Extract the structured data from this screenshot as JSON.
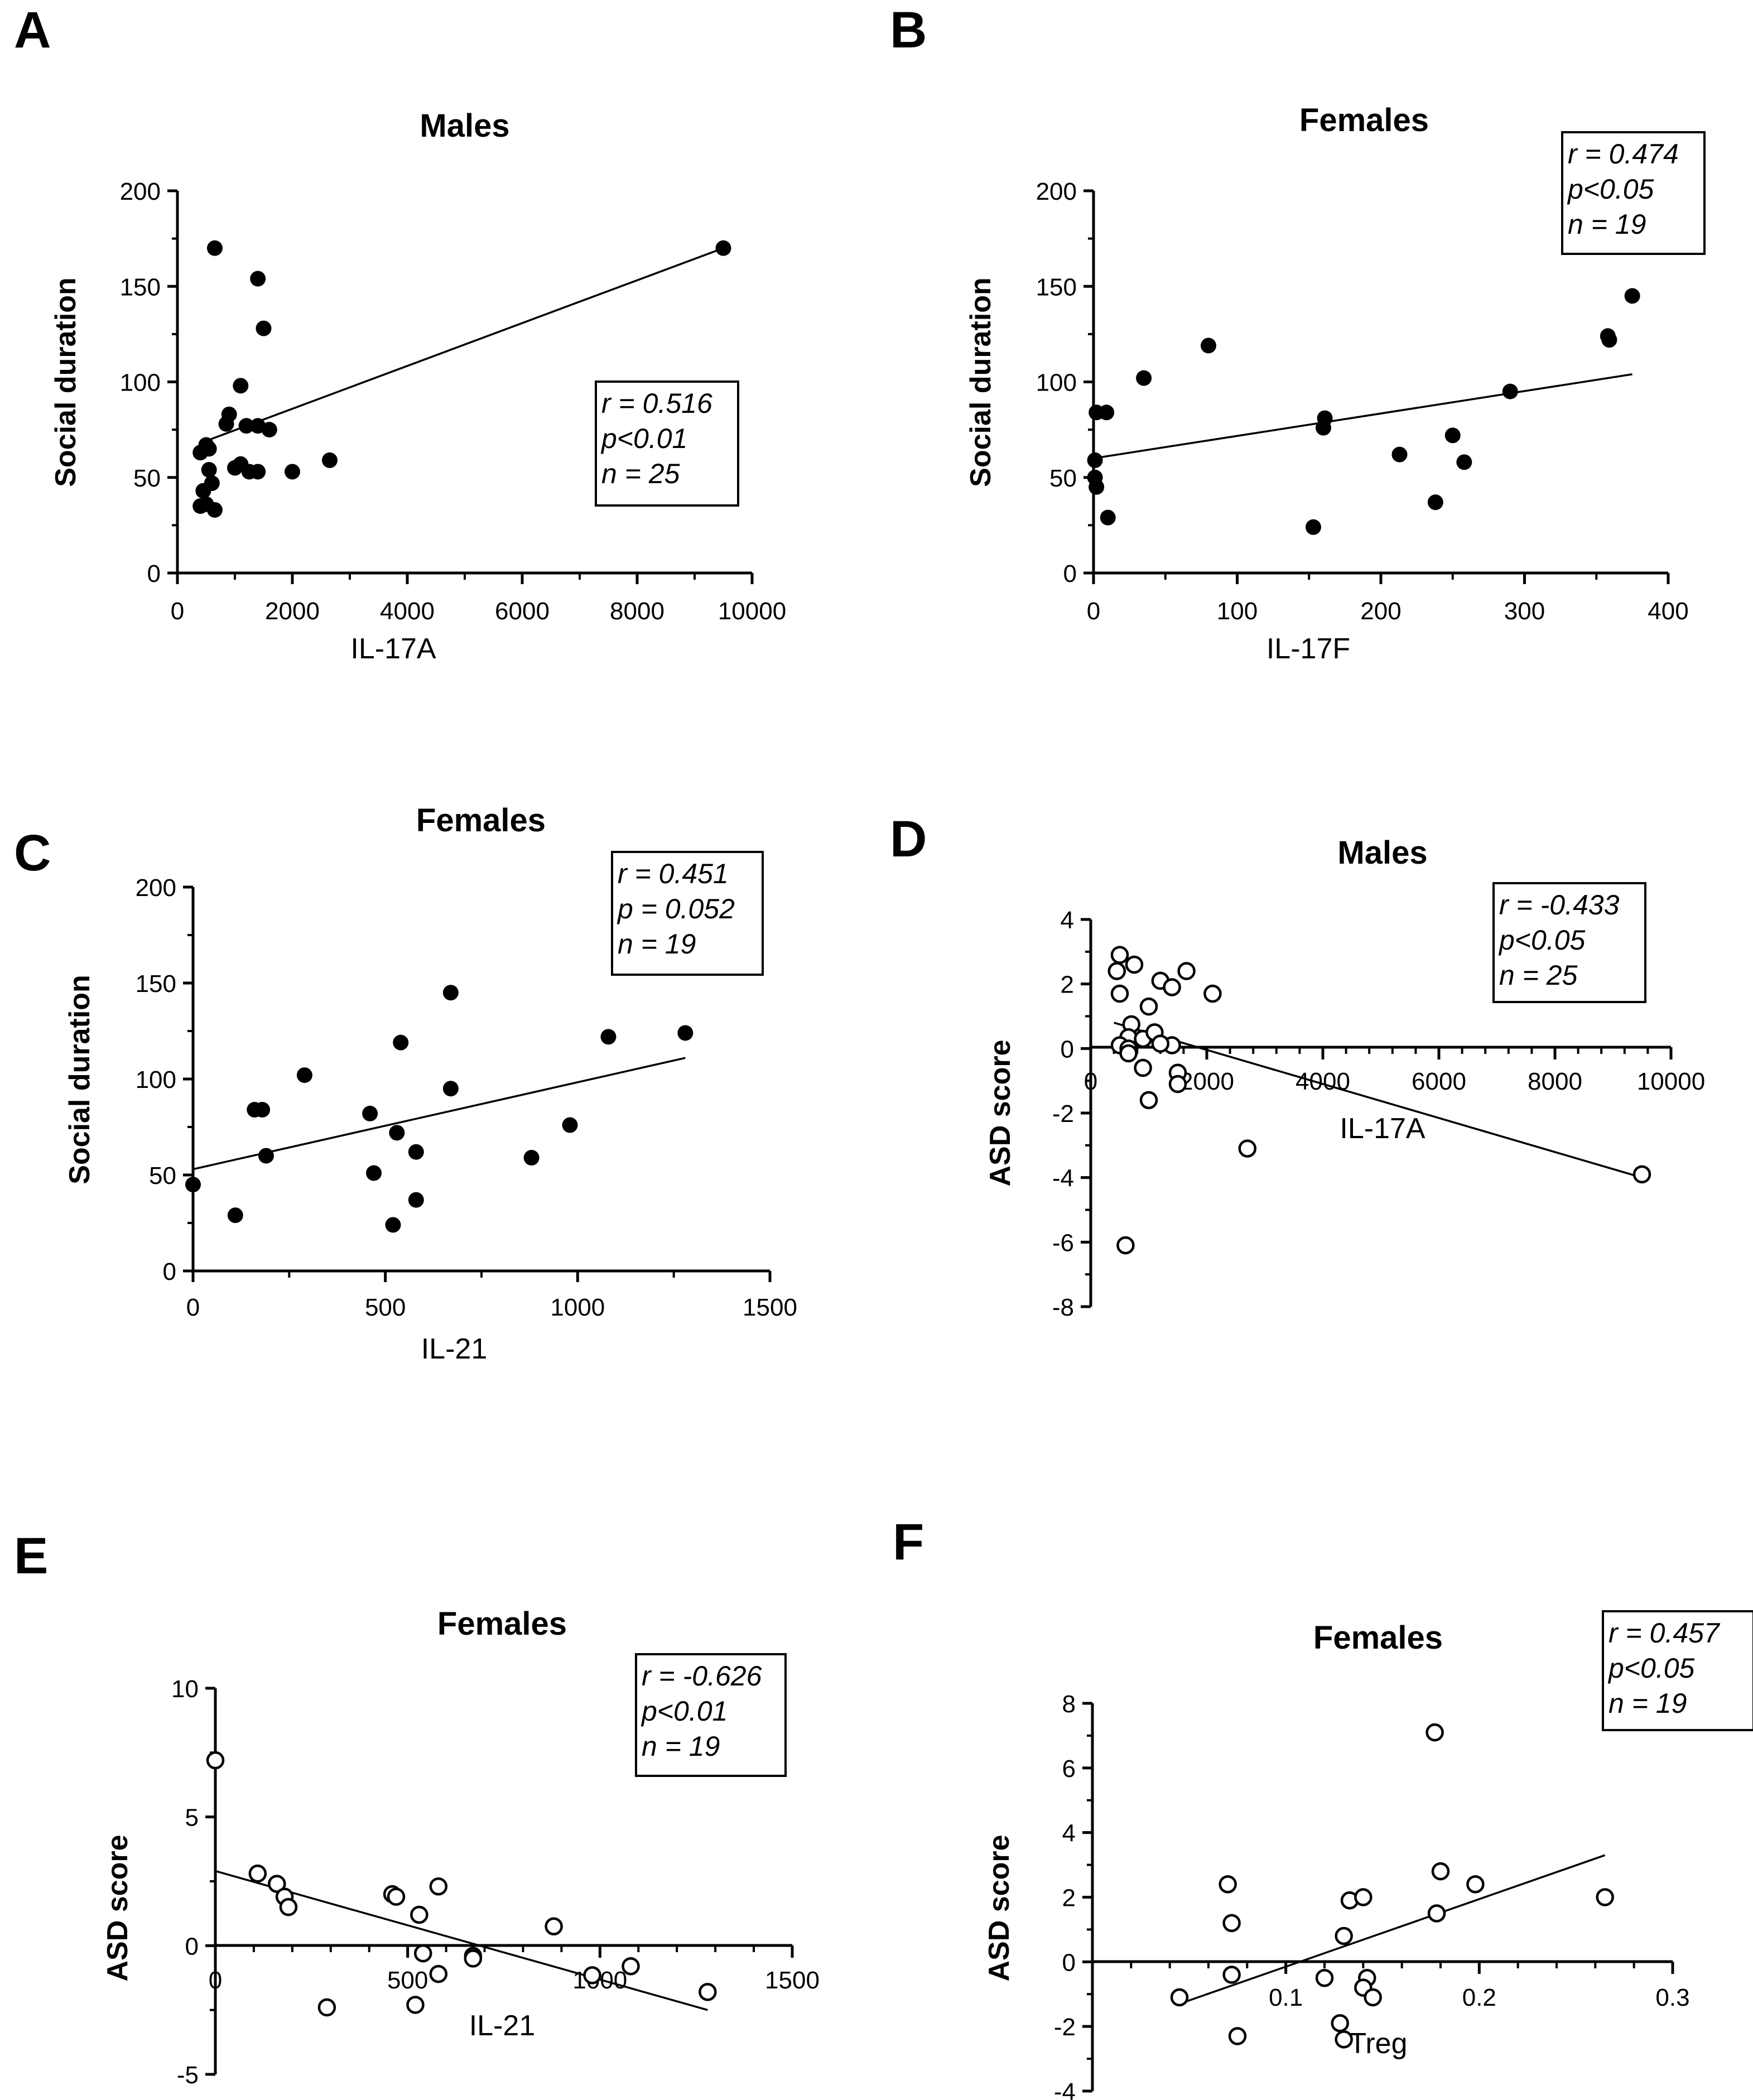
{
  "figure": {
    "panels": [
      {
        "letter": "A",
        "marker": "filled",
        "chart_data": {
          "type": "scatter",
          "title": "Males",
          "xlabel": "IL-17A",
          "ylabel": "Social duration",
          "xlim": [
            0,
            10000
          ],
          "ylim": [
            0,
            200
          ],
          "xticks": [
            0,
            2000,
            4000,
            6000,
            8000,
            10000
          ],
          "yticks": [
            0,
            50,
            100,
            150,
            200
          ],
          "x": [
            650,
            1400,
            1500,
            1100,
            900,
            850,
            1200,
            1400,
            1600,
            500,
            550,
            400,
            1000,
            1100,
            1250,
            1400,
            2000,
            2650,
            550,
            600,
            450,
            500,
            650,
            400,
            9500
          ],
          "y": [
            170,
            154,
            128,
            98,
            83,
            78,
            77,
            77,
            75,
            67,
            65,
            63,
            55,
            57,
            53,
            53,
            53,
            59,
            54,
            47,
            43,
            36,
            33,
            35,
            170
          ],
          "fit": {
            "x": [
              400,
              9500
            ],
            "y": [
              68,
              170
            ]
          },
          "annotations": [
            "r = 0.516",
            "p<0.01",
            "n = 25"
          ]
        }
      },
      {
        "letter": "B",
        "marker": "filled",
        "chart_data": {
          "type": "scatter",
          "title": "Females",
          "xlabel": "IL-17F",
          "ylabel": "Social duration",
          "xlim": [
            0,
            400
          ],
          "ylim": [
            0,
            200
          ],
          "xticks": [
            0,
            100,
            200,
            300,
            400
          ],
          "yticks": [
            0,
            50,
            100,
            150,
            200
          ],
          "x": [
            2,
            9,
            1,
            1,
            2,
            10,
            35,
            80,
            153,
            160,
            161,
            213,
            238,
            250,
            258,
            290,
            358,
            359,
            375
          ],
          "y": [
            84,
            84,
            59,
            50,
            45,
            29,
            102,
            119,
            24,
            76,
            81,
            62,
            37,
            72,
            58,
            95,
            124,
            122,
            145
          ],
          "fit": {
            "x": [
              0,
              375
            ],
            "y": [
              60,
              104
            ]
          },
          "annotations": [
            "r = 0.474",
            "p<0.05",
            "n = 19"
          ]
        }
      },
      {
        "letter": "C",
        "marker": "filled",
        "chart_data": {
          "type": "scatter",
          "title": "Females",
          "xlabel": "IL-21",
          "ylabel": "Social duration",
          "xlim": [
            0,
            1500
          ],
          "ylim": [
            0,
            200
          ],
          "xticks": [
            0,
            500,
            1000,
            1500
          ],
          "yticks": [
            0,
            50,
            100,
            150,
            200
          ],
          "x": [
            0,
            110,
            160,
            180,
            190,
            290,
            460,
            470,
            520,
            530,
            540,
            580,
            580,
            670,
            670,
            880,
            980,
            1080,
            1280
          ],
          "y": [
            45,
            29,
            84,
            84,
            60,
            102,
            82,
            51,
            24,
            72,
            119,
            62,
            37,
            145,
            95,
            59,
            76,
            122,
            124
          ],
          "fit": {
            "x": [
              0,
              1280
            ],
            "y": [
              53,
              111
            ]
          },
          "annotations": [
            "r = 0.451",
            "p = 0.052",
            "n = 19"
          ]
        }
      },
      {
        "letter": "D",
        "marker": "open",
        "chart_data": {
          "type": "scatter",
          "title": "Males",
          "xlabel": "IL-17A",
          "ylabel": "ASD score",
          "xlim": [
            0,
            10000
          ],
          "ylim": [
            -8,
            4
          ],
          "xticks": [
            0,
            2000,
            4000,
            6000,
            8000,
            10000
          ],
          "yticks": [
            -8,
            -6,
            -4,
            -2,
            0,
            2,
            4
          ],
          "x": [
            500,
            450,
            750,
            500,
            1200,
            1650,
            1400,
            2100,
            700,
            1000,
            650,
            900,
            500,
            650,
            1400,
            1100,
            1200,
            900,
            1500,
            1500,
            1000,
            2700,
            600,
            9500,
            650
          ],
          "y": [
            2.9,
            2.4,
            2.6,
            1.7,
            2.1,
            2.4,
            1.9,
            1.7,
            0.75,
            1.3,
            0.35,
            0.3,
            0.1,
            0.0,
            0.1,
            0.5,
            0.15,
            -0.6,
            -0.75,
            -1.1,
            -1.6,
            -3.1,
            -6.1,
            -3.9,
            -0.15
          ],
          "fit": {
            "x": [
              400,
              9500
            ],
            "y": [
              0.8,
              -4.0
            ]
          },
          "annotations": [
            "r = -0.433",
            "p<0.05",
            "n = 25"
          ]
        }
      },
      {
        "letter": "E",
        "marker": "open",
        "chart_data": {
          "type": "scatter",
          "title": "Females",
          "xlabel": "IL-21",
          "ylabel": "ASD score",
          "xlim": [
            0,
            1500
          ],
          "ylim": [
            -5,
            10
          ],
          "xticks": [
            0,
            500,
            1000,
            1500
          ],
          "yticks": [
            -5,
            0,
            5,
            10
          ],
          "x": [
            0,
            110,
            160,
            180,
            190,
            290,
            460,
            470,
            520,
            530,
            540,
            580,
            580,
            670,
            670,
            880,
            980,
            1080,
            1280
          ],
          "y": [
            7.2,
            2.8,
            2.4,
            1.9,
            1.5,
            -2.4,
            2.0,
            1.9,
            -2.3,
            1.2,
            -0.3,
            2.3,
            -1.1,
            -0.4,
            -0.5,
            0.75,
            -1.15,
            -0.8,
            -1.8
          ],
          "fit": {
            "x": [
              0,
              1280
            ],
            "y": [
              2.9,
              -2.5
            ]
          },
          "annotations": [
            "r = -0.626",
            "p<0.01",
            "n = 19"
          ]
        }
      },
      {
        "letter": "F",
        "marker": "open",
        "chart_data": {
          "type": "scatter",
          "title": "Females",
          "xlabel": "Treg",
          "ylabel": "ASD score",
          "xlim": [
            0,
            0.3
          ],
          "ylim": [
            -4,
            8
          ],
          "xticks": [
            0.1,
            0.2,
            0.3
          ],
          "yticks": [
            -4,
            -2,
            0,
            2,
            4,
            6,
            8
          ],
          "x": [
            0.045,
            0.07,
            0.072,
            0.075,
            0.072,
            0.12,
            0.128,
            0.13,
            0.133,
            0.14,
            0.142,
            0.14,
            0.145,
            0.177,
            0.178,
            0.18,
            0.198,
            0.265,
            0.13
          ],
          "y": [
            -1.1,
            2.4,
            1.2,
            -2.3,
            -0.4,
            -0.5,
            -1.9,
            0.8,
            1.9,
            2.0,
            -0.5,
            -0.8,
            -1.1,
            7.1,
            1.5,
            2.8,
            2.4,
            2.0,
            -2.4
          ],
          "fit": {
            "x": [
              0.045,
              0.265
            ],
            "y": [
              -1.3,
              3.3
            ]
          },
          "annotations": [
            "r = 0.457",
            "p<0.05",
            "n = 19"
          ]
        }
      }
    ]
  }
}
